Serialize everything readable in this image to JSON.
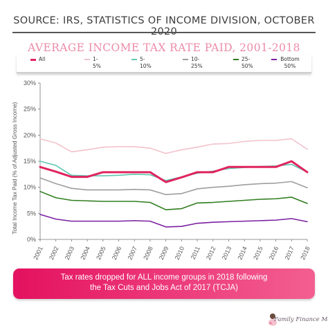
{
  "source": "SOURCE: IRS, STATISTICS OF INCOME DIVISION, OCTOBER 2020",
  "brand": "Family Finance Mom",
  "banner": {
    "line1": "Tax rates dropped for ALL income groups in 2018 following",
    "line2": "the Tax Cuts and Jobs Act of 2017 (TCJA)"
  },
  "chart_data": {
    "type": "line",
    "title": "AVERAGE INCOME TAX RATE PAID, 2001-2018",
    "ylabel": "Total Income Tax Paid (% of Adjusted Gross Income)",
    "xlabel": "",
    "x": [
      "2001",
      "2002",
      "2003",
      "2004",
      "2005",
      "2006",
      "2007",
      "2008",
      "2009",
      "2010",
      "2011",
      "2012",
      "2013",
      "2014",
      "2015",
      "2016",
      "2017",
      "2018"
    ],
    "y_ticks": [
      "0%",
      "5%",
      "10%",
      "15%",
      "20%",
      "25%",
      "30%"
    ],
    "ylim": [
      0,
      30
    ],
    "grid": false,
    "legend": "top",
    "series": [
      {
        "name": "All",
        "color": "#e0245e",
        "width": 3,
        "values": [
          13.9,
          13.0,
          12.0,
          12.0,
          12.9,
          12.9,
          12.9,
          12.9,
          11.0,
          11.9,
          12.9,
          12.9,
          13.9,
          13.9,
          13.9,
          13.9,
          15.0,
          12.9
        ]
      },
      {
        "name": "1-5%",
        "color": "#f2c2cc",
        "width": 1.6,
        "values": [
          19.3,
          18.5,
          16.8,
          17.2,
          17.7,
          17.8,
          17.8,
          17.5,
          16.5,
          17.2,
          17.7,
          18.3,
          18.4,
          18.8,
          19.0,
          19.0,
          19.3,
          17.3
        ]
      },
      {
        "name": "5-10%",
        "color": "#5fc8b0",
        "width": 1.6,
        "values": [
          15.0,
          14.2,
          12.3,
          12.2,
          12.2,
          12.3,
          12.5,
          12.4,
          11.3,
          12.0,
          12.7,
          13.1,
          13.6,
          13.8,
          14.0,
          14.1,
          14.4,
          12.9
        ]
      },
      {
        "name": "10-25%",
        "color": "#9e9e9e",
        "width": 1.6,
        "values": [
          11.8,
          10.7,
          9.8,
          9.5,
          9.5,
          9.5,
          9.6,
          9.5,
          8.6,
          8.8,
          9.7,
          10.0,
          10.2,
          10.5,
          10.7,
          10.8,
          11.1,
          9.9
        ]
      },
      {
        "name": "25-50%",
        "color": "#2f7d1e",
        "width": 1.6,
        "values": [
          9.2,
          8.0,
          7.5,
          7.4,
          7.3,
          7.3,
          7.3,
          7.1,
          5.7,
          5.9,
          7.0,
          7.1,
          7.3,
          7.5,
          7.7,
          7.8,
          8.1,
          6.9
        ]
      },
      {
        "name": "Bottom 50%",
        "color": "#7a1fa2",
        "width": 1.6,
        "values": [
          4.8,
          3.9,
          3.5,
          3.5,
          3.5,
          3.5,
          3.6,
          3.5,
          2.4,
          2.5,
          3.1,
          3.3,
          3.4,
          3.5,
          3.6,
          3.7,
          4.0,
          3.4
        ]
      }
    ]
  }
}
